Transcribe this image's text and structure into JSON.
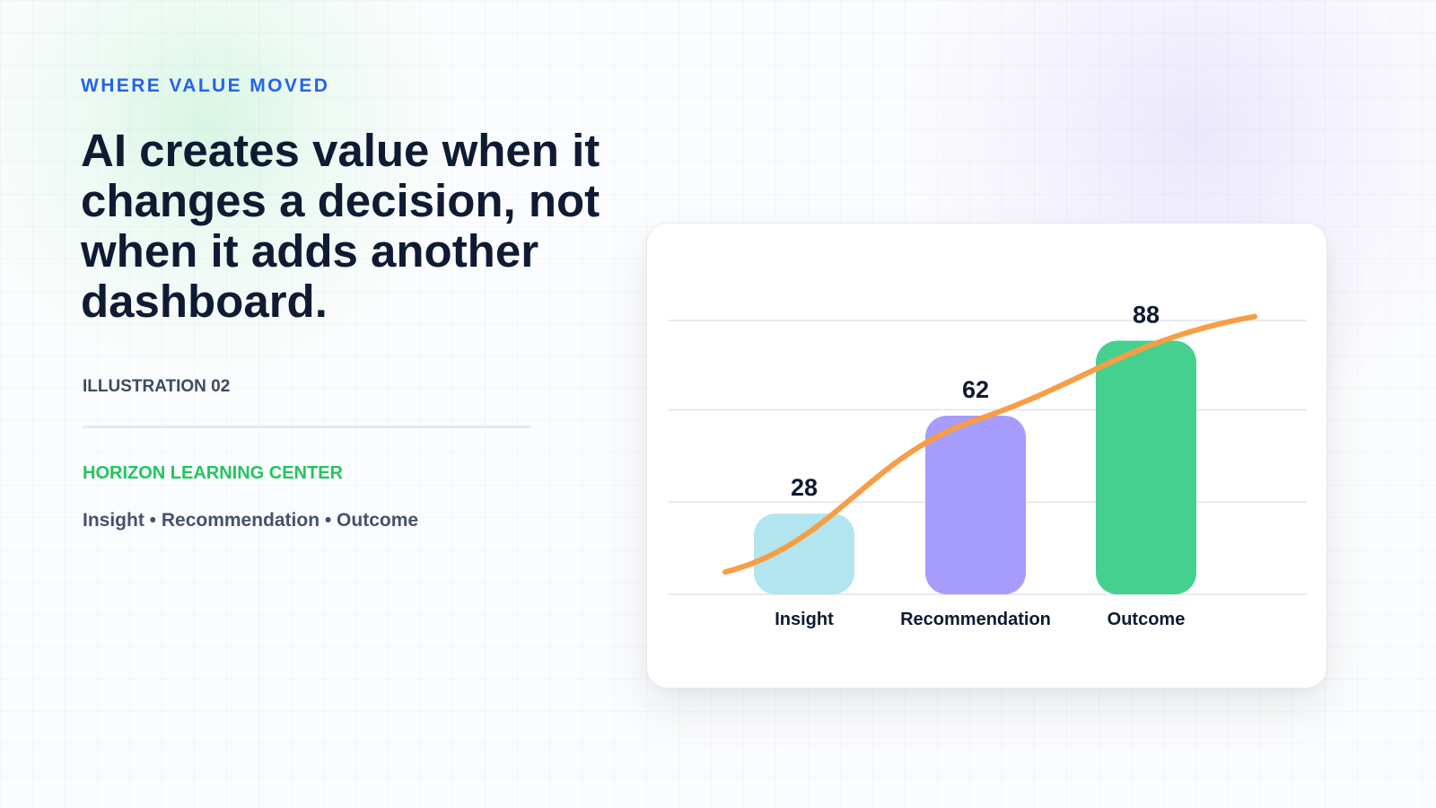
{
  "header": {
    "eyebrow": "WHERE VALUE MOVED",
    "headline": "AI creates value when it changes a decision, not when it adds another dashboard."
  },
  "meta": {
    "illustration_label": "ILLUSTRATION 02",
    "organization": "HORIZON LEARNING CENTER",
    "caption": "Insight • Recommendation • Outcome"
  },
  "chart_data": {
    "type": "bar",
    "categories": [
      "Insight",
      "Recommendation",
      "Outcome"
    ],
    "values": [
      28,
      62,
      88
    ],
    "bar_colors": [
      "#b3e5f0",
      "#a59cfb",
      "#45d08f"
    ],
    "trend_line": {
      "color": "#f79d45",
      "description_of_points": "rising curve through bar values",
      "x": [
        0,
        1,
        2
      ],
      "values": [
        28,
        62,
        88
      ]
    },
    "ylim": [
      0,
      90
    ],
    "grid": true,
    "legend": "none"
  },
  "colors": {
    "accent": "#2563eb",
    "brand": "#22c55e",
    "title": "#0f1b33"
  }
}
